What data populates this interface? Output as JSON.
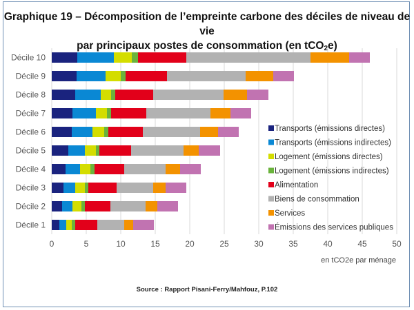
{
  "title_line1": "Graphique 19 – Décomposition de l’empreinte carbone des déciles de niveau de vie",
  "title_line2_main": "par principaux postes de consommation (en tCO",
  "title_line2_sub": "2",
  "title_line2_end": "e)",
  "source": "Source : Rapport Pisani-Ferry/Mahfouz, P.102",
  "chart_data": {
    "type": "bar",
    "orientation": "horizontal",
    "stacked": true,
    "title": "Graphique 19 – Décomposition de l’empreinte carbone des déciles de niveau de vie par principaux postes de consommation (en tCO2e)",
    "xlabel": "en tCO2e par ménage",
    "ylabel": "",
    "xlim": [
      0,
      50
    ],
    "xticks": [
      0,
      5,
      10,
      15,
      20,
      25,
      30,
      35,
      40,
      45,
      50
    ],
    "grid": true,
    "legend_position": "right",
    "categories": [
      "Décile 10",
      "Décile 9",
      "Décile 8",
      "Décile 7",
      "Décile 6",
      "Décile 5",
      "Décile 4",
      "Décile 3",
      "Décile 2",
      "Décile 1"
    ],
    "series": [
      {
        "name": "Transports (émissions directes)",
        "color": "#1a237e",
        "values": [
          3.7,
          3.6,
          3.4,
          3.0,
          2.9,
          2.4,
          2.0,
          1.7,
          1.5,
          1.1
        ]
      },
      {
        "name": "Transports (émissions indirectes)",
        "color": "#0a88d4",
        "values": [
          5.3,
          4.2,
          3.7,
          3.4,
          3.0,
          2.4,
          2.1,
          1.7,
          1.5,
          1.0
        ]
      },
      {
        "name": "Logement (émissions directes)",
        "color": "#d4dd00",
        "values": [
          2.6,
          2.2,
          1.5,
          1.6,
          1.7,
          1.6,
          1.5,
          1.4,
          1.3,
          0.8
        ]
      },
      {
        "name": "Logement (émissions indirectes)",
        "color": "#6ab33c",
        "values": [
          0.9,
          0.7,
          0.6,
          0.6,
          0.6,
          0.5,
          0.6,
          0.5,
          0.5,
          0.5
        ]
      },
      {
        "name": "Alimentation",
        "color": "#e2001a",
        "values": [
          7.0,
          6.0,
          5.5,
          5.1,
          5.0,
          4.6,
          4.3,
          4.1,
          3.7,
          3.2
        ]
      },
      {
        "name": "Biens de consommation",
        "color": "#b2b2b2",
        "values": [
          18.0,
          11.4,
          10.2,
          9.3,
          8.3,
          7.6,
          6.0,
          5.3,
          5.1,
          3.9
        ]
      },
      {
        "name": "Services",
        "color": "#f39200",
        "values": [
          5.6,
          4.0,
          3.4,
          2.9,
          2.6,
          2.2,
          2.1,
          1.8,
          1.7,
          1.3
        ]
      },
      {
        "name": "Émissions des services publiques",
        "color": "#c173b1",
        "values": [
          3.0,
          3.0,
          3.1,
          3.0,
          3.0,
          3.1,
          3.0,
          3.0,
          3.0,
          3.0
        ]
      }
    ]
  }
}
